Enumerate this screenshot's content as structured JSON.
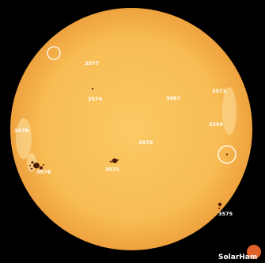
{
  "image": {
    "subject": "solar disk",
    "colors": {
      "background": "#000000",
      "disk_center": "#fbc964",
      "disk_edge": "#f2ad45",
      "label": "#ffffff",
      "sunspot": "#4a1a08",
      "logo_badge": "#e0602a"
    }
  },
  "regions": [
    {
      "id": "3577",
      "label": "3577"
    },
    {
      "id": "3574",
      "label": "3574"
    },
    {
      "id": "3567",
      "label": "3567"
    },
    {
      "id": "3573",
      "label": "3573"
    },
    {
      "id": "3569",
      "label": "3569"
    },
    {
      "id": "3578",
      "label": "3578"
    },
    {
      "id": "3570",
      "label": "3570"
    },
    {
      "id": "3576",
      "label": "3576"
    },
    {
      "id": "3571",
      "label": "3571"
    },
    {
      "id": "3575",
      "label": "3575"
    }
  ],
  "logo": {
    "text": "SolarHam",
    "icon": "sun-logo-icon"
  },
  "credit": {
    "text": ""
  }
}
